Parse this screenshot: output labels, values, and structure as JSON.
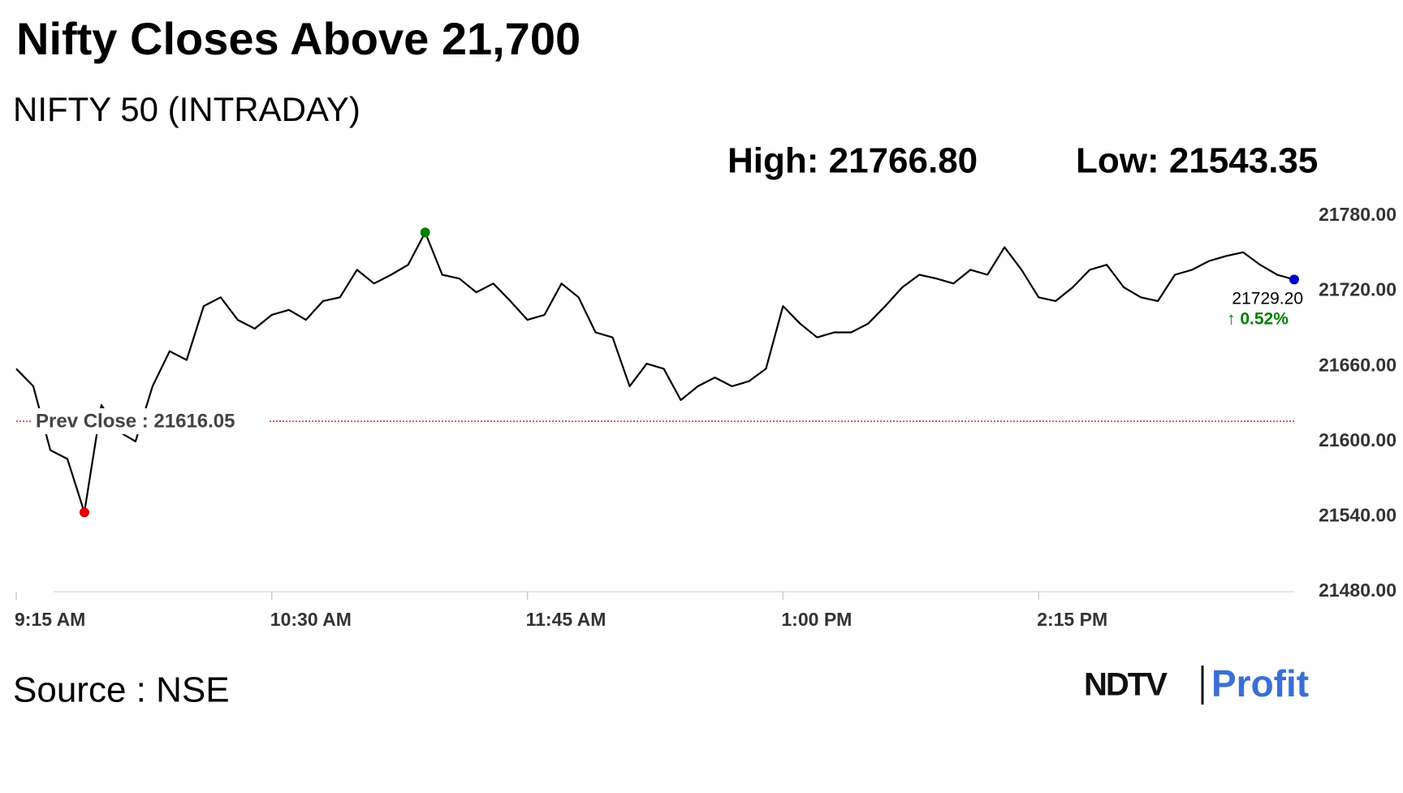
{
  "chart_data": {
    "type": "line",
    "title": "Nifty Closes Above 21,700",
    "subtitle": "NIFTY 50 (INTRADAY)",
    "high": {
      "label": "High: 21766.80",
      "value": 21766.8
    },
    "low": {
      "label": "Low: 21543.35",
      "value": 21543.35
    },
    "prev_close": {
      "label": "Prev Close : 21616.05",
      "value": 21616.05
    },
    "last": {
      "label": "21729.20",
      "value": 21729.2,
      "change": "↑ 0.52%"
    },
    "source": "Source : NSE",
    "logo": [
      "NDTV",
      "Profit"
    ],
    "x": [
      "9:15 AM",
      "9:20 AM",
      "9:25 AM",
      "9:30 AM",
      "9:35 AM",
      "9:40 AM",
      "9:45 AM",
      "9:50 AM",
      "9:55 AM",
      "10:00 AM",
      "10:05 AM",
      "10:10 AM",
      "10:15 AM",
      "10:20 AM",
      "10:25 AM",
      "10:30 AM",
      "10:35 AM",
      "10:40 AM",
      "10:45 AM",
      "10:50 AM",
      "10:55 AM",
      "11:00 AM",
      "11:05 AM",
      "11:10 AM",
      "11:15 AM",
      "11:20 AM",
      "11:25 AM",
      "11:30 AM",
      "11:35 AM",
      "11:40 AM",
      "11:45 AM",
      "11:50 AM",
      "11:55 AM",
      "12:00 PM",
      "12:05 PM",
      "12:10 PM",
      "12:15 PM",
      "12:20 PM",
      "12:25 PM",
      "12:30 PM",
      "12:35 PM",
      "12:40 PM",
      "12:45 PM",
      "12:50 PM",
      "12:55 PM",
      "1:00 PM",
      "1:05 PM",
      "1:10 PM",
      "1:15 PM",
      "1:20 PM",
      "1:25 PM",
      "1:30 PM",
      "1:35 PM",
      "1:40 PM",
      "1:45 PM",
      "1:50 PM",
      "1:55 PM",
      "2:00 PM",
      "2:05 PM",
      "2:10 PM",
      "2:15 PM",
      "2:20 PM",
      "2:25 PM",
      "2:30 PM",
      "2:35 PM",
      "2:40 PM",
      "2:45 PM",
      "2:50 PM",
      "2:55 PM",
      "3:00 PM",
      "3:05 PM",
      "3:10 PM",
      "3:15 PM",
      "3:20 PM",
      "3:25 PM",
      "3:30 PM"
    ],
    "series": [
      {
        "name": "NIFTY 50",
        "color": "#000000",
        "values": [
          21658,
          21644,
          21593,
          21586,
          21543.35,
          21629,
          21608,
          21600,
          21644,
          21672,
          21665,
          21708,
          21715,
          21697,
          21690,
          21701,
          21705,
          21697,
          21712,
          21715,
          21737,
          21726,
          21733,
          21741,
          21766.8,
          21733,
          21730,
          21719,
          21726,
          21712,
          21697,
          21701,
          21726,
          21715,
          21687,
          21683,
          21644,
          21662,
          21658,
          21633,
          21644,
          21651,
          21644,
          21648,
          21658,
          21708,
          21694,
          21683,
          21687,
          21687,
          21694,
          21708,
          21723,
          21733,
          21730,
          21726,
          21737,
          21733,
          21755,
          21737,
          21715,
          21712,
          21723,
          21737,
          21741,
          21723,
          21715,
          21712,
          21733,
          21737,
          21744,
          21748,
          21751,
          21741,
          21733,
          21729.2
        ]
      }
    ],
    "xlim": [
      "9:15 AM",
      "3:30 PM"
    ],
    "xticks": [
      "9:15 AM",
      "10:30 AM",
      "11:45 AM",
      "1:00 PM",
      "2:15 PM"
    ],
    "ylim": [
      21480,
      21780
    ],
    "yticks": [
      {
        "value": 21480,
        "label": "21480.00"
      },
      {
        "value": 21540,
        "label": "21540.00"
      },
      {
        "value": 21600,
        "label": "21600.00"
      },
      {
        "value": 21660,
        "label": "21660.00"
      },
      {
        "value": 21720,
        "label": "21720.00"
      },
      {
        "value": 21780,
        "label": "21780.00"
      }
    ],
    "high_color": "#008000",
    "low_color": "#e00000",
    "last_color": "#0000cc",
    "prev_close_color": "#cc0000",
    "change_color": "#008000"
  }
}
